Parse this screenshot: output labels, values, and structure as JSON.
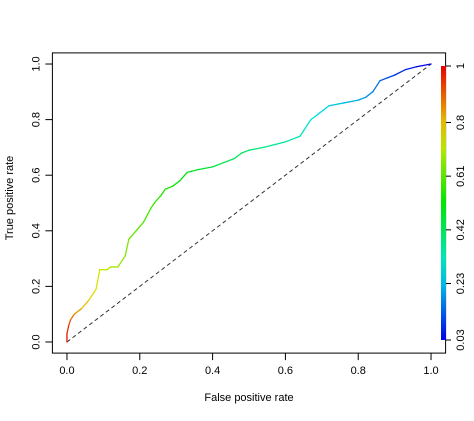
{
  "chart_data": {
    "type": "roc",
    "xlabel": "False positive rate",
    "ylabel": "True positive rate",
    "x": [
      0,
      0,
      0.005,
      0.01,
      0.02,
      0.04,
      0.06,
      0.08,
      0.09,
      0.11,
      0.12,
      0.14,
      0.16,
      0.17,
      0.19,
      0.21,
      0.23,
      0.24,
      0.26,
      0.27,
      0.29,
      0.31,
      0.33,
      0.36,
      0.4,
      0.44,
      0.46,
      0.48,
      0.5,
      0.54,
      0.57,
      0.6,
      0.62,
      0.64,
      0.65,
      0.67,
      0.69,
      0.72,
      0.76,
      0.8,
      0.82,
      0.84,
      0.86,
      0.88,
      0.9,
      0.93,
      0.96,
      1
    ],
    "y": [
      0,
      0.03,
      0.06,
      0.08,
      0.1,
      0.12,
      0.15,
      0.19,
      0.26,
      0.26,
      0.27,
      0.27,
      0.31,
      0.37,
      0.4,
      0.43,
      0.48,
      0.5,
      0.53,
      0.55,
      0.56,
      0.58,
      0.61,
      0.62,
      0.63,
      0.65,
      0.66,
      0.68,
      0.69,
      0.7,
      0.71,
      0.72,
      0.73,
      0.74,
      0.76,
      0.8,
      0.82,
      0.85,
      0.86,
      0.87,
      0.88,
      0.9,
      0.94,
      0.95,
      0.96,
      0.98,
      0.99,
      1
    ],
    "cutoffs": [
      1,
      0.98,
      0.95,
      0.92,
      0.88,
      0.84,
      0.8,
      0.77,
      0.74,
      0.72,
      0.71,
      0.69,
      0.67,
      0.65,
      0.63,
      0.61,
      0.59,
      0.58,
      0.56,
      0.55,
      0.54,
      0.52,
      0.5,
      0.48,
      0.46,
      0.44,
      0.43,
      0.42,
      0.41,
      0.39,
      0.37,
      0.35,
      0.34,
      0.33,
      0.32,
      0.3,
      0.28,
      0.26,
      0.24,
      0.22,
      0.2,
      0.18,
      0.15,
      0.12,
      0.1,
      0.08,
      0.06,
      0.03
    ],
    "colormap": "rainbow",
    "zlim": [
      0.03,
      1
    ],
    "zticks": [
      1,
      0.8,
      0.61,
      0.42,
      0.23,
      0.03
    ],
    "xlim": [
      -0.04,
      1.04
    ],
    "ylim": [
      -0.04,
      1.04
    ],
    "xticks": [
      {
        "value": 0,
        "label": "0.0"
      },
      {
        "value": 0.2,
        "label": "0.2"
      },
      {
        "value": 0.4,
        "label": "0.4"
      },
      {
        "value": 0.6,
        "label": "0.6"
      },
      {
        "value": 0.8,
        "label": "0.8"
      },
      {
        "value": 1,
        "label": "1.0"
      }
    ],
    "yticks": [
      {
        "value": 0,
        "label": "0.0"
      },
      {
        "value": 0.2,
        "label": "0.2"
      },
      {
        "value": 0.4,
        "label": "0.4"
      },
      {
        "value": 0.6,
        "label": "0.6"
      },
      {
        "value": 0.8,
        "label": "0.8"
      },
      {
        "value": 1,
        "label": "1.0"
      }
    ],
    "diagonal": true
  }
}
